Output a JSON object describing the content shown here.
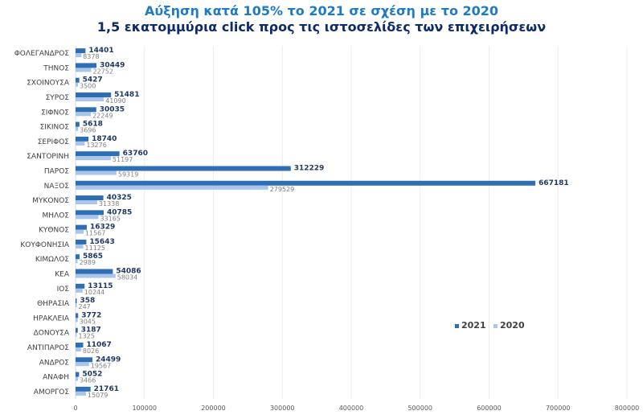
{
  "chart_data": {
    "type": "bar",
    "orientation": "horizontal",
    "title": "Αύξηση κατά 105% το 2021 σε σχέση με το 2020",
    "subtitle": "1,5 εκατομμύρια click προς τις ιστοσελίδες των επιχειρήσεων",
    "categories": [
      "ΦΟΛΕΓΑΝΔΡΟΣ",
      "ΤΗΝΟΣ",
      "ΣΧΟΙΝΟΥΣΑ",
      "ΣΥΡΟΣ",
      "ΣΙΦΝΟΣ",
      "ΣΙΚΙΝΟΣ",
      "ΣΕΡΙΦΟΣ",
      "ΣΑΝΤΟΡΙΝΗ",
      "ΠΑΡΟΣ",
      "ΝΑΞΟΣ",
      "ΜΥΚΟΝΟΣ",
      "ΜΗΛΟΣ",
      "ΚΥΘΝΟΣ",
      "ΚΟΥΦΟΝΗΣΙΑ",
      "ΚΙΜΩΛΟΣ",
      "ΚΕΑ",
      "ΙΟΣ",
      "ΘΗΡΑΣΙΑ",
      "ΗΡΑΚΛΕΙΑ",
      "ΔΟΝΟΥΣΑ",
      "ΑΝΤΙΠΑΡΟΣ",
      "ΑΝΔΡΟΣ",
      "ΑΝΑΦΗ",
      "ΑΜΟΡΓΟΣ"
    ],
    "series": [
      {
        "name": "2021",
        "color": "#2e6eb5",
        "values": [
          14401,
          30449,
          5427,
          51481,
          30035,
          5618,
          18740,
          63760,
          312229,
          667181,
          40325,
          40785,
          16329,
          15643,
          5865,
          54086,
          13115,
          358,
          3772,
          3187,
          11067,
          24499,
          5052,
          21761
        ]
      },
      {
        "name": "2020",
        "color": "#a9c6ea",
        "values": [
          8378,
          22752,
          3500,
          41090,
          22249,
          3696,
          13276,
          51197,
          59319,
          279529,
          31338,
          33165,
          11567,
          11125,
          2989,
          58034,
          10244,
          247,
          3045,
          1325,
          8026,
          19567,
          3466,
          15079
        ]
      }
    ],
    "xticks": [
      "0",
      "100000",
      "200000",
      "300000",
      "400000",
      "500000",
      "600000",
      "700000",
      "800000"
    ],
    "xlim": [
      0,
      800000
    ],
    "grid": true,
    "legend": "bottom-right",
    "xlabel": "",
    "ylabel": ""
  }
}
